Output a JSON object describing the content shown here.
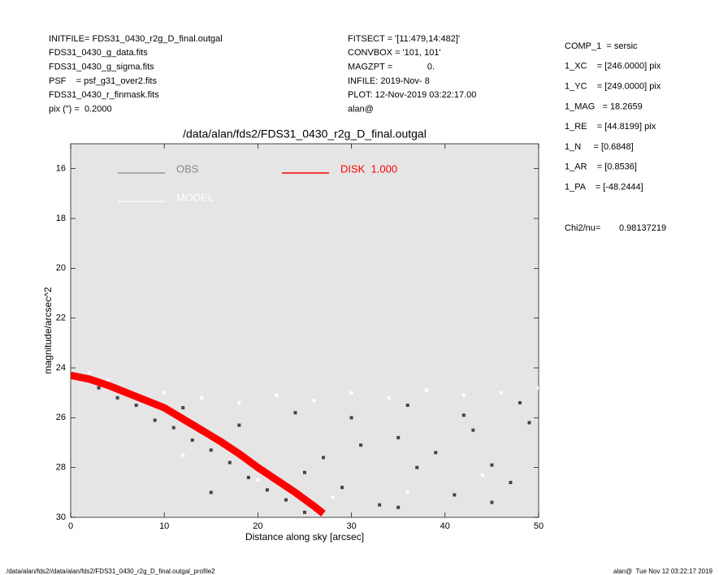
{
  "header": {
    "left": [
      "INITFILE= FDS31_0430_r2g_D_final.outgal",
      "FDS31_0430_g_data.fits",
      "FDS31_0430_g_sigma.fits",
      "PSF    = psf_g31_over2.fits",
      "FDS31_0430_r_finmask.fits",
      "pix (\") =  0.2000"
    ],
    "middle": [
      "FITSECT = '[11:479,14:482]'",
      "CONVBOX = '101, 101'",
      "MAGZPT =              0.",
      "INFILE: 2019-Nov- 8",
      "PLOT: 12-Nov-2019 03:22:17.00",
      "alan@"
    ],
    "params": [
      "COMP_1  = sersic",
      "1_XC    = [246.0000] pix",
      "1_YC    = [249.0000] pix",
      "1_MAG   = 18.2659",
      "1_RE    = [44.8199] pix",
      "1_N     = [0.6848]",
      "1_AR    = [0.8536]",
      "1_PA    = [-48.2444]"
    ],
    "chi2_label": "Chi2/nu=",
    "chi2_value": "0.98137219"
  },
  "footer": {
    "left": "/data/alan/fds2//data/alan/fds2/FDS31_0430_r2g_D_final.outgal_profile2",
    "right": "alan@  Tue Nov 12 03:22:17 2019"
  },
  "chart_data": {
    "type": "scatter",
    "title": "/data/alan/fds2/FDS31_0430_r2g_D_final.outgal",
    "x_label": "Distance along sky [arcsec]",
    "y_label": "magnitude/arcsec^2",
    "xlim": [
      0,
      50
    ],
    "xticks": [
      0,
      10,
      20,
      30,
      40,
      50
    ],
    "ylim": [
      30,
      15
    ],
    "yticks": [
      16,
      18,
      20,
      22,
      24,
      26,
      28,
      30
    ],
    "background": "#e5e5e5",
    "series": [
      {
        "name": "OBS",
        "color": "#888888",
        "point_color": "#444444",
        "kind": "points",
        "x": [
          1,
          3,
          5,
          7,
          9,
          11,
          13,
          15,
          17,
          19,
          21,
          23,
          25,
          27,
          29,
          31,
          33,
          35,
          37,
          39,
          41,
          43,
          45,
          47,
          49,
          6,
          12,
          18,
          24,
          30,
          36,
          42,
          48,
          15,
          25,
          35,
          45
        ],
        "values": [
          24.3,
          24.8,
          25.2,
          25.5,
          26.1,
          26.4,
          26.9,
          27.3,
          27.8,
          28.4,
          28.9,
          29.3,
          28.2,
          27.6,
          28.8,
          27.1,
          29.5,
          26.8,
          28.0,
          27.4,
          29.1,
          26.5,
          27.9,
          28.6,
          26.2,
          24.9,
          25.6,
          26.3,
          25.8,
          26.0,
          25.5,
          25.9,
          25.4,
          29.0,
          29.8,
          29.6,
          29.4
        ]
      },
      {
        "name": "MODEL",
        "color": "#ffffff",
        "point_color": "#ffffff",
        "kind": "points",
        "x": [
          2,
          4,
          6,
          8,
          10,
          14,
          18,
          22,
          26,
          30,
          34,
          38,
          42,
          46,
          50,
          12,
          20,
          28,
          36,
          44
        ],
        "values": [
          24.2,
          24.5,
          24.9,
          25.3,
          25.0,
          25.2,
          25.4,
          25.1,
          25.3,
          25.0,
          25.2,
          24.9,
          25.1,
          25.0,
          24.8,
          27.5,
          28.5,
          29.2,
          29.0,
          28.3
        ]
      },
      {
        "name": "DISK  1.000",
        "color": "#ff0000",
        "kind": "line",
        "x": [
          0,
          2,
          4,
          6,
          8,
          10,
          12,
          14,
          16,
          18,
          20,
          22,
          24,
          26,
          27
        ],
        "values": [
          24.3,
          24.45,
          24.7,
          25.0,
          25.3,
          25.6,
          26.05,
          26.5,
          26.95,
          27.45,
          28.0,
          28.5,
          29.0,
          29.55,
          29.85
        ]
      }
    ]
  }
}
